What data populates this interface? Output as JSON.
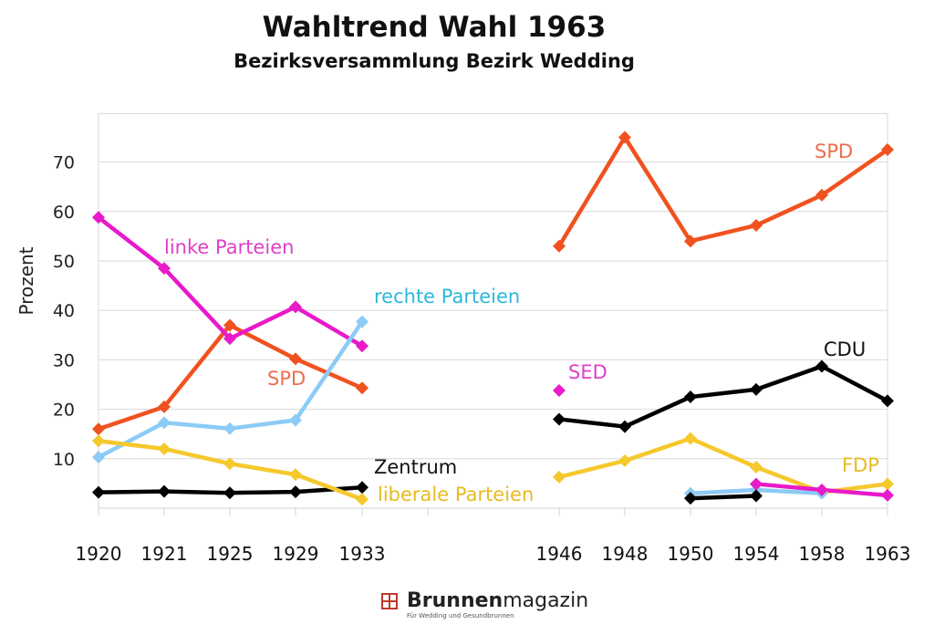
{
  "chart_data": {
    "type": "line",
    "title": "Wahltrend Wahl 1963",
    "subtitle": "Bezirksversammlung Bezirk Wedding",
    "ylabel": "Prozent",
    "xlabel": "",
    "ylim": [
      0,
      80
    ],
    "yticks": [
      10,
      20,
      30,
      40,
      50,
      60,
      70
    ],
    "grid": true,
    "categories": [
      "1920",
      "1921",
      "1925",
      "1929",
      "1933",
      "",
      "1946",
      "1948",
      "1950",
      "1954",
      "1958",
      "1963"
    ],
    "series": [
      {
        "name": "SPD",
        "color": "#F0521F",
        "values": [
          16,
          20.5,
          37,
          30.2,
          24.3,
          null,
          53,
          75,
          54,
          57.2,
          63.3,
          72.5
        ]
      },
      {
        "name": "SPD",
        "color": "#F0521F",
        "label_only": true
      },
      {
        "name": "linke Parteien",
        "color": "#E81AC9",
        "values": [
          58.8,
          48.5,
          34.3,
          40.7,
          32.8,
          null,
          null,
          null,
          null,
          null,
          null,
          null
        ]
      },
      {
        "name": "rechte Parteien",
        "color": "#8CCBF5",
        "values": [
          10.3,
          17.3,
          16.1,
          17.8,
          37.7,
          null,
          null,
          null,
          null,
          null,
          null,
          null
        ]
      },
      {
        "name": "Zentrum",
        "color": "#000000",
        "values": [
          3.2,
          3.4,
          3.1,
          3.3,
          4.2,
          null,
          null,
          null,
          null,
          null,
          null,
          null
        ]
      },
      {
        "name": "liberale Parteien",
        "color": "#F5C82C",
        "values": [
          13.6,
          12,
          9,
          6.8,
          1.8,
          null,
          6.3,
          9.6,
          14.1,
          8.3,
          3.2,
          4.9
        ]
      },
      {
        "name": "SED",
        "color": "#E81AC9",
        "values": [
          null,
          null,
          null,
          null,
          null,
          null,
          23.8,
          null,
          null,
          null,
          null,
          null
        ]
      },
      {
        "name": "CDU",
        "color": "#000000",
        "values": [
          null,
          null,
          null,
          null,
          null,
          null,
          18,
          16.5,
          22.5,
          24,
          28.7,
          21.7
        ]
      },
      {
        "name": "FDP",
        "color": "#F5C82C",
        "label_only": true
      },
      {
        "name": "",
        "color": "#8CCBF5",
        "values": [
          null,
          null,
          null,
          null,
          null,
          null,
          null,
          null,
          3,
          3.7,
          3,
          null
        ]
      },
      {
        "name": "",
        "color": "#E81AC9",
        "values": [
          null,
          null,
          null,
          null,
          null,
          null,
          null,
          null,
          null,
          4.9,
          3.7,
          2.6
        ]
      },
      {
        "name": "",
        "color": "#000000",
        "values": [
          null,
          null,
          null,
          null,
          null,
          null,
          null,
          null,
          2,
          2.5,
          null,
          null
        ]
      }
    ]
  },
  "logo": {
    "brand": "Brunnen",
    "suffix": "magazin",
    "tagline": "Für Wedding und Gesundbrunnen"
  }
}
